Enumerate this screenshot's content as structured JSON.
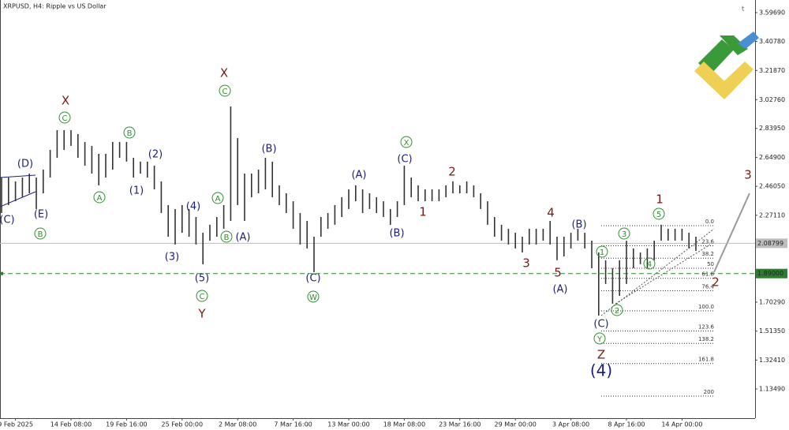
{
  "chart_data": {
    "type": "ohlc",
    "title": "XRPUSD, H4:  Ripple vs US Dollar",
    "categories": [
      null,
      null,
      "9 Feb 2025",
      null,
      null,
      null,
      null,
      null,
      null,
      null,
      "14 Feb 08:00",
      null,
      null,
      null,
      null,
      null,
      null,
      null,
      "19 Feb 16:00",
      null,
      null,
      null,
      null,
      null,
      null,
      null,
      "25 Feb 00:00",
      null,
      null,
      null,
      null,
      null,
      null,
      null,
      "2 Mar 08:00",
      null,
      null,
      null,
      null,
      null,
      null,
      null,
      "7 Mar 16:00",
      null,
      null,
      null,
      null,
      null,
      null,
      null,
      "13 Mar 00:00",
      null,
      null,
      null,
      null,
      null,
      null,
      null,
      "18 Mar 08:00",
      null,
      null,
      null,
      null,
      null,
      null,
      null,
      "23 Mar 16:00",
      null,
      null,
      null,
      null,
      null,
      null,
      null,
      "29 Mar 00:00",
      null,
      null,
      null,
      null,
      null,
      null,
      null,
      "3 Apr 08:00",
      null,
      null,
      null,
      null,
      null,
      null,
      null,
      "8 Apr 16:00",
      null,
      null,
      null,
      null,
      null,
      null,
      null,
      "14 Apr 00:00",
      null,
      null
    ],
    "high": [
      2.518,
      2.518,
      2.493,
      2.518,
      2.544,
      2.518,
      2.57,
      2.699,
      2.828,
      2.828,
      2.828,
      2.802,
      2.751,
      2.725,
      2.673,
      2.673,
      2.751,
      2.751,
      2.751,
      2.647,
      2.622,
      2.622,
      2.596,
      2.493,
      2.338,
      2.312,
      2.338,
      2.312,
      2.26,
      2.157,
      2.209,
      2.26,
      2.338,
      2.983,
      2.776,
      2.544,
      2.544,
      2.57,
      2.647,
      2.622,
      2.467,
      2.415,
      2.363,
      2.286,
      2.234,
      2.131,
      2.26,
      2.286,
      2.338,
      2.389,
      2.441,
      2.467,
      2.441,
      2.415,
      2.389,
      2.363,
      2.312,
      2.363,
      2.596,
      2.518,
      2.467,
      2.441,
      2.441,
      2.441,
      2.467,
      2.493,
      2.467,
      2.493,
      2.467,
      2.415,
      2.363,
      2.26,
      2.209,
      2.183,
      2.157,
      2.131,
      2.183,
      2.183,
      2.183,
      2.234,
      2.131,
      2.131,
      2.157,
      2.183,
      2.157,
      2.105,
      2.028,
      1.977,
      1.925,
      1.977,
      2.105,
      2.054,
      2.028,
      2.054,
      2.105,
      2.209,
      2.183,
      2.183,
      2.183,
      2.157,
      2.131
    ],
    "low": [
      2.286,
      2.338,
      2.363,
      2.389,
      2.415,
      2.312,
      2.415,
      2.518,
      2.647,
      2.699,
      2.725,
      2.647,
      2.596,
      2.544,
      2.467,
      2.518,
      2.57,
      2.647,
      2.622,
      2.518,
      2.544,
      2.518,
      2.441,
      2.286,
      2.131,
      2.08,
      2.157,
      2.131,
      2.08,
      1.951,
      2.105,
      2.131,
      2.183,
      2.234,
      2.338,
      2.234,
      2.389,
      2.415,
      2.441,
      2.389,
      2.338,
      2.286,
      2.183,
      2.08,
      2.054,
      1.899,
      2.131,
      2.183,
      2.209,
      2.26,
      2.312,
      2.363,
      2.286,
      2.312,
      2.286,
      2.26,
      2.209,
      2.26,
      2.338,
      2.389,
      2.363,
      2.363,
      2.363,
      2.363,
      2.389,
      2.415,
      2.415,
      2.415,
      2.389,
      2.312,
      2.209,
      2.131,
      2.105,
      2.08,
      2.054,
      2.028,
      2.08,
      2.08,
      2.105,
      2.08,
      1.977,
      2.002,
      2.054,
      2.105,
      2.054,
      1.925,
      1.615,
      1.822,
      1.693,
      1.744,
      1.822,
      1.925,
      1.951,
      1.925,
      1.977,
      2.105,
      2.105,
      2.105,
      2.105,
      2.054,
      2.038
    ],
    "color": "#333333",
    "ylim": [
      0.9439,
      3.6537
    ],
    "yticks": [
      {
        "value": 3.5969,
        "label": "3.59690"
      },
      {
        "value": 3.4078,
        "label": "3.40780"
      },
      {
        "value": 3.2187,
        "label": "3.21870"
      },
      {
        "value": 3.0276,
        "label": "3.02760"
      },
      {
        "value": 2.8395,
        "label": "2.83950"
      },
      {
        "value": 2.649,
        "label": "2.64900"
      },
      {
        "value": 2.4605,
        "label": "2.46050"
      },
      {
        "value": 2.2711,
        "label": "2.27110"
      },
      {
        "value": 1.7029,
        "label": "1.70290"
      },
      {
        "value": 1.5135,
        "label": "1.51350"
      },
      {
        "value": 1.3241,
        "label": "1.32410"
      },
      {
        "value": 1.1349,
        "label": "1.13490"
      }
    ],
    "price_line": 2.08799,
    "level_line": {
      "value": 1.89,
      "label": "1.89000"
    },
    "fib_from": 2.2034,
    "fib_to": 1.646,
    "fib_levels": [
      {
        "value": 0,
        "label": "0.0"
      },
      23.6,
      38.2,
      50,
      61.8,
      76.4,
      {
        "value": 100,
        "label": "100.0"
      },
      123.6,
      138.2,
      161.8,
      200
    ],
    "annotation_colors": {
      "red": "#7b1a12",
      "navy": "#1c1f7a",
      "green": "#2f8f2f"
    },
    "annotations": [
      {
        "text": "(D)",
        "style": "navy"
      },
      {
        "text": "(C)",
        "style": "navy"
      },
      {
        "text": "(E)",
        "style": "navy"
      },
      {
        "text": "B",
        "style": "green"
      },
      {
        "text": "X",
        "style": "red"
      },
      {
        "text": "C",
        "style": "green"
      },
      {
        "text": "A",
        "style": "green"
      },
      {
        "text": "B",
        "style": "green"
      },
      {
        "text": "(2)",
        "style": "navy"
      },
      {
        "text": "(1)",
        "style": "navy"
      },
      {
        "text": "(4)",
        "style": "navy"
      },
      {
        "text": "(3)",
        "style": "navy"
      },
      {
        "text": "(5)",
        "style": "navy"
      },
      {
        "text": "C",
        "style": "green"
      },
      {
        "text": "Y",
        "style": "red"
      },
      {
        "text": "X",
        "style": "red"
      },
      {
        "text": "C",
        "style": "green"
      },
      {
        "text": "A",
        "style": "green"
      },
      {
        "text": "B",
        "style": "green"
      },
      {
        "text": "(A)",
        "style": "navy"
      },
      {
        "text": "(B)",
        "style": "navy"
      },
      {
        "text": "(C)",
        "style": "navy"
      },
      {
        "text": "W",
        "style": "green"
      },
      {
        "text": "(A)",
        "style": "navy"
      },
      {
        "text": "X",
        "style": "green"
      },
      {
        "text": "(C)",
        "style": "navy"
      },
      {
        "text": "(B)",
        "style": "navy"
      },
      {
        "text": "1",
        "style": "red"
      },
      {
        "text": "2",
        "style": "red"
      },
      {
        "text": "4",
        "style": "red"
      },
      {
        "text": "3",
        "style": "red"
      },
      {
        "text": "5",
        "style": "red"
      },
      {
        "text": "(A)",
        "style": "navy"
      },
      {
        "text": "(B)",
        "style": "navy"
      },
      {
        "text": "(C)",
        "style": "navy"
      },
      {
        "text": "Y",
        "style": "green"
      },
      {
        "text": "Z",
        "style": "red"
      },
      {
        "text": "(4)",
        "style": "navy"
      },
      {
        "text": "1",
        "style": "red"
      },
      {
        "text": "5",
        "style": "green"
      },
      {
        "text": "3",
        "style": "green"
      },
      {
        "text": "1",
        "style": "green"
      },
      {
        "text": "4",
        "style": "green"
      },
      {
        "text": "2",
        "style": "green"
      },
      {
        "text": "2",
        "style": "red"
      },
      {
        "text": "3",
        "style": "red"
      }
    ]
  }
}
